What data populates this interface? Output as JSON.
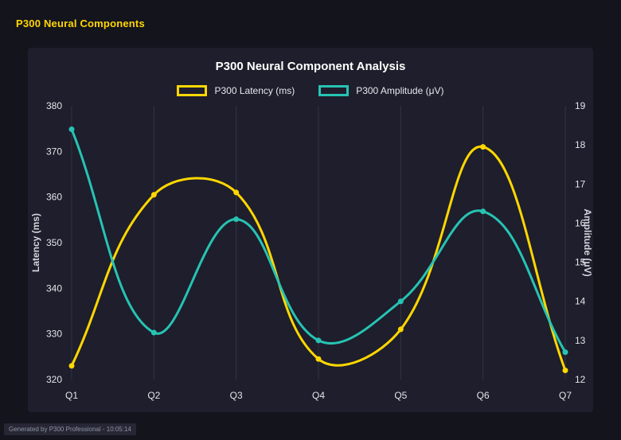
{
  "page": {
    "title": "P300 Neural Components",
    "footer": "Generated by P300 Professional - 10:05:14"
  },
  "colors": {
    "page_bg": "#14141d",
    "panel_bg": "#1e1e2c",
    "header_text": "#ffd700",
    "chart_title_text": "#ffffff",
    "tick_text": "#e4e4ea",
    "axis_title_text": "#d6d6de",
    "grid_line": "rgba(255,255,255,0.10)",
    "latency_series": "#ffd700",
    "amplitude_series": "#27c3b3"
  },
  "chart_data": {
    "type": "line",
    "title": "P300 Neural Component Analysis",
    "categories": [
      "Q1",
      "Q2",
      "Q3",
      "Q4",
      "Q5",
      "Q6",
      "Q7"
    ],
    "series": [
      {
        "name": "P300 Latency (ms)",
        "axis": "left",
        "color": "#ffd700",
        "tension": 0.4,
        "values": [
          323,
          360.5,
          361,
          324.5,
          331,
          371,
          322
        ]
      },
      {
        "name": "P300 Amplitude (μV)",
        "axis": "right",
        "color": "#27c3b3",
        "tension": 0.4,
        "values": [
          18.4,
          13.2,
          16.1,
          13.0,
          14.0,
          16.3,
          12.7
        ]
      }
    ],
    "axes": {
      "left": {
        "label": "Latency (ms)",
        "min": 320,
        "max": 380,
        "ticks": [
          320,
          330,
          340,
          350,
          360,
          370,
          380
        ]
      },
      "right": {
        "label": "Amplitude (μV)",
        "min": 12,
        "max": 19,
        "ticks": [
          12,
          13,
          14,
          15,
          16,
          17,
          18,
          19
        ]
      }
    },
    "grid": {
      "vertical": true,
      "horizontal": false
    },
    "legend_position": "top"
  }
}
